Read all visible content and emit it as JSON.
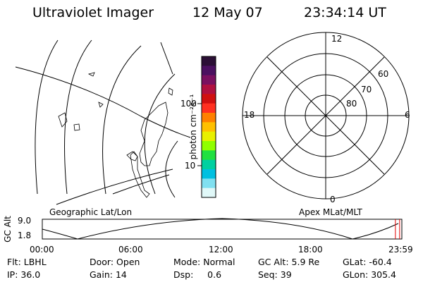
{
  "header": {
    "title": "Ultraviolet Imager",
    "date": "12 May 07",
    "time": "23:34:14 UT"
  },
  "geo_panel": {
    "label": "Geographic Lat/Lon"
  },
  "apex_panel": {
    "label": "Apex MLat/MLT",
    "mlt_labels": {
      "top": "12",
      "left": "18",
      "right": "6",
      "bottom": "0"
    },
    "lat_labels": [
      "60",
      "70",
      "80"
    ]
  },
  "colorbar": {
    "unit_label": "photon cm⁻²s⁻¹",
    "ticks": [
      "100",
      "10"
    ],
    "colors": [
      "#2b0f35",
      "#4b1060",
      "#7a1060",
      "#b01040",
      "#d01010",
      "#ff3020",
      "#ff8000",
      "#ffc000",
      "#e8f000",
      "#90ff00",
      "#20e040",
      "#00d0a0",
      "#00c0e0",
      "#80e0f0",
      "#e0f8f8"
    ]
  },
  "timeline": {
    "ylabel": "GC Alt",
    "y_ticks": [
      "9.0",
      "1.8"
    ],
    "x_ticks": [
      "00:00",
      "06:00",
      "12:00",
      "18:00",
      "23:59"
    ],
    "current_time_hours": 23.57
  },
  "status": {
    "filter": {
      "label": "Flt:",
      "value": "LBHL"
    },
    "ip": {
      "label": "IP:",
      "value": "36.0"
    },
    "door": {
      "label": "Door:",
      "value": "Open"
    },
    "gain": {
      "label": "Gain:",
      "value": "14"
    },
    "mode": {
      "label": "Mode:",
      "value": "Normal"
    },
    "dsp": {
      "label": "Dsp:",
      "value": "0.6"
    },
    "gc_alt": {
      "label": "GC Alt:",
      "value": "5.9 Re"
    },
    "seq": {
      "label": "Seq:",
      "value": "39"
    },
    "glat": {
      "label": "GLat:",
      "value": "-60.4"
    },
    "glon": {
      "label": "GLon:",
      "value": "305.4"
    }
  }
}
